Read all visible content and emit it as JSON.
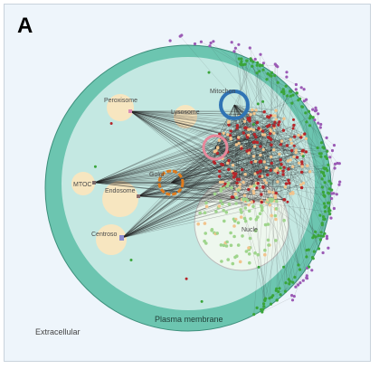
{
  "panel_label": "A",
  "regions": {
    "extracellular": "Extracellular",
    "plasma_membrane": "Plasma membrane"
  },
  "compartments": {
    "peroxisome": "Peroxisome",
    "lysosome": "Lysosome",
    "mitochondria": "Mitochon",
    "golgi": "Golgi",
    "mtoc": "MTOC",
    "endosome": "Endosome",
    "centrosome": "Centroso",
    "nucleus": "Nucle"
  },
  "colors": {
    "background": "#eef5fb",
    "membrane": "#6cc5b0",
    "cytoplasm": "#c4e8e2",
    "nucleus_fill": "#eef7ee",
    "organelle_fill": "#f7e6c0",
    "edge": "#222222",
    "node_red": "#b5262a",
    "node_peach": "#f2c48d",
    "node_green": "#3aa53a",
    "node_light_green": "#9fd58c",
    "node_purple": "#9b5bb5",
    "ring_blue": "#2f74b5",
    "ring_pink": "#e6889b",
    "ring_orange": "#e07b1d"
  }
}
